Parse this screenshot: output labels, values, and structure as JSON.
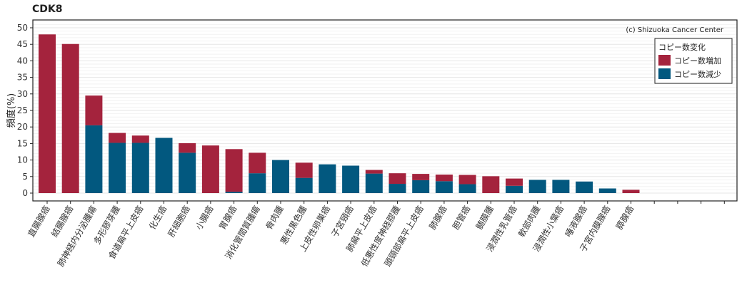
{
  "chart_data": {
    "type": "bar",
    "stacked": true,
    "title": "CDK8",
    "ylabel": "頻度(%)",
    "credit": "(c) Shizuoka Cancer Center",
    "ylim": [
      0,
      52
    ],
    "yticks": [
      0,
      5,
      10,
      15,
      20,
      25,
      30,
      35,
      40,
      45,
      50
    ],
    "grid": true,
    "legend_placement": "top-right",
    "legend_title": "コピー数変化",
    "categories": [
      "直腸腺癌",
      "結腸腺癌",
      "肺神経内分泌腫瘍",
      "多形膠芽腫",
      "食道扁平上皮癌",
      "化生癌",
      "肝細胞癌",
      "小腸癌",
      "胃腺癌",
      "消化管間質腫瘍",
      "骨肉腫",
      "悪性黒色腫",
      "上皮性卵巣癌",
      "子宮頸癌",
      "肺扁平上皮癌",
      "低悪性度神経膠腫",
      "頭頸部扁平上皮癌",
      "肺腺癌",
      "胆管癌",
      "髄膜腫",
      "浸潤性乳管癌",
      "軟部肉腫",
      "浸潤性小葉癌",
      "唾液腺癌",
      "子宮内膜腺癌",
      "膵腺癌",
      "",
      "",
      "",
      ""
    ],
    "series": [
      {
        "name": "コピー数減少",
        "color": "#02587f",
        "values": [
          0,
          0,
          20.5,
          15.2,
          15.2,
          16.7,
          12.2,
          0,
          0.4,
          6,
          10,
          4.6,
          8.7,
          8.3,
          5.9,
          2.8,
          3.9,
          3.6,
          2.7,
          0,
          2.2,
          4,
          4,
          3.5,
          1.4,
          0,
          0,
          0,
          0,
          0
        ]
      },
      {
        "name": "コピー数増加",
        "color": "#a4233d",
        "values": [
          48,
          45.1,
          9,
          3,
          2.2,
          0,
          2.9,
          14.4,
          12.9,
          6.2,
          0,
          4.6,
          0,
          0,
          1.1,
          3.2,
          1.9,
          2,
          2.8,
          5.1,
          2.2,
          0,
          0,
          0,
          0,
          1,
          0,
          0,
          0,
          0
        ]
      }
    ]
  }
}
